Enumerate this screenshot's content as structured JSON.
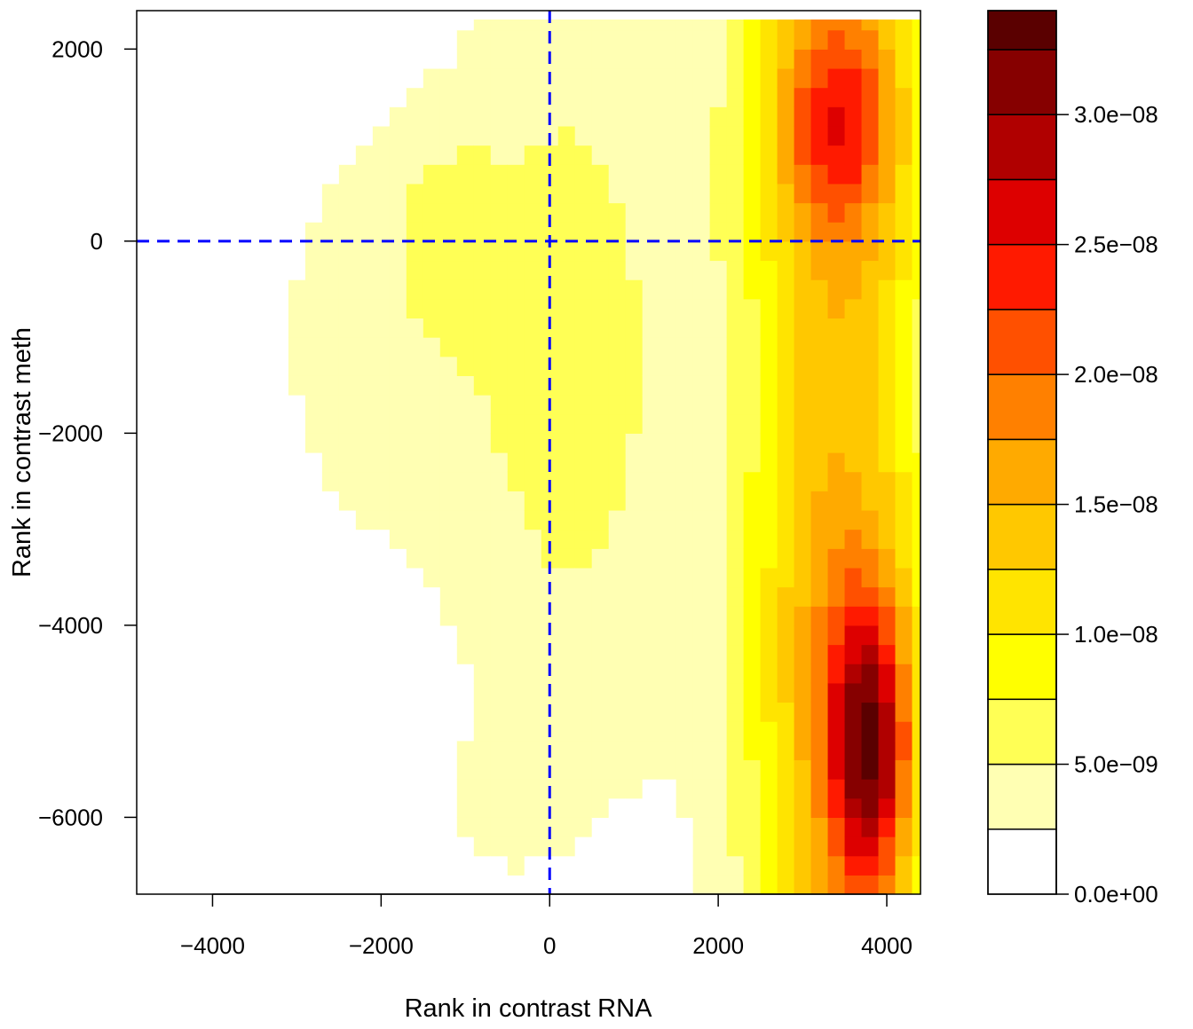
{
  "chart_data": {
    "type": "heatmap",
    "subtype": "filled-contour",
    "title": "",
    "xlabel": "Rank in contrast RNA",
    "ylabel": "Rank in contrast meth",
    "xlim": [
      -4900,
      4400
    ],
    "ylim": [
      -6800,
      2400
    ],
    "xticks": [
      -4000,
      -2000,
      0,
      2000,
      4000
    ],
    "xtick_labels": [
      "−4000",
      "−2000",
      "0",
      "2000",
      "4000"
    ],
    "yticks": [
      -6000,
      -4000,
      -2000,
      0,
      2000
    ],
    "ytick_labels": [
      "−6000",
      "−4000",
      "−2000",
      "0",
      "2000"
    ],
    "reference_lines": {
      "x": 0,
      "y": 0,
      "color": "#0000ff",
      "style": "dashed"
    },
    "grid": false,
    "legend_placement": "right",
    "colorscale": {
      "name": "heat",
      "levels": [
        0,
        2.5e-09,
        5e-09,
        7.5e-09,
        1e-08,
        1.25e-08,
        1.5e-08,
        1.75e-08,
        2e-08,
        2.25e-08,
        2.5e-08,
        2.75e-08,
        3e-08,
        3.25e-08,
        3.5e-08
      ],
      "colors": [
        "#ffffff",
        "#ffffb3",
        "#ffff55",
        "#ffff00",
        "#ffe400",
        "#ffc800",
        "#ffaa00",
        "#ff8000",
        "#ff5000",
        "#ff1a00",
        "#dd0000",
        "#b00000",
        "#860000",
        "#5a0000",
        "#2e0000",
        "#000000"
      ],
      "ticks": [
        0,
        5e-09,
        1e-08,
        1.5e-08,
        2e-08,
        2.5e-08,
        3e-08
      ],
      "tick_labels": [
        "0.0e+00",
        "5.0e−09",
        "1.0e−08",
        "1.5e−08",
        "2.0e−08",
        "2.5e−08",
        "3.0e−08"
      ],
      "range": [
        0,
        3.4e-08
      ]
    },
    "density_peaks": [
      {
        "x": 3800,
        "y": -5300,
        "value": 3.4e-08
      },
      {
        "x": 3400,
        "y": 1200,
        "value": 2.3e-08
      },
      {
        "x": -1200,
        "y": 200,
        "value": 7e-09
      },
      {
        "x": -600,
        "y": -5800,
        "value": 7e-09
      }
    ]
  }
}
